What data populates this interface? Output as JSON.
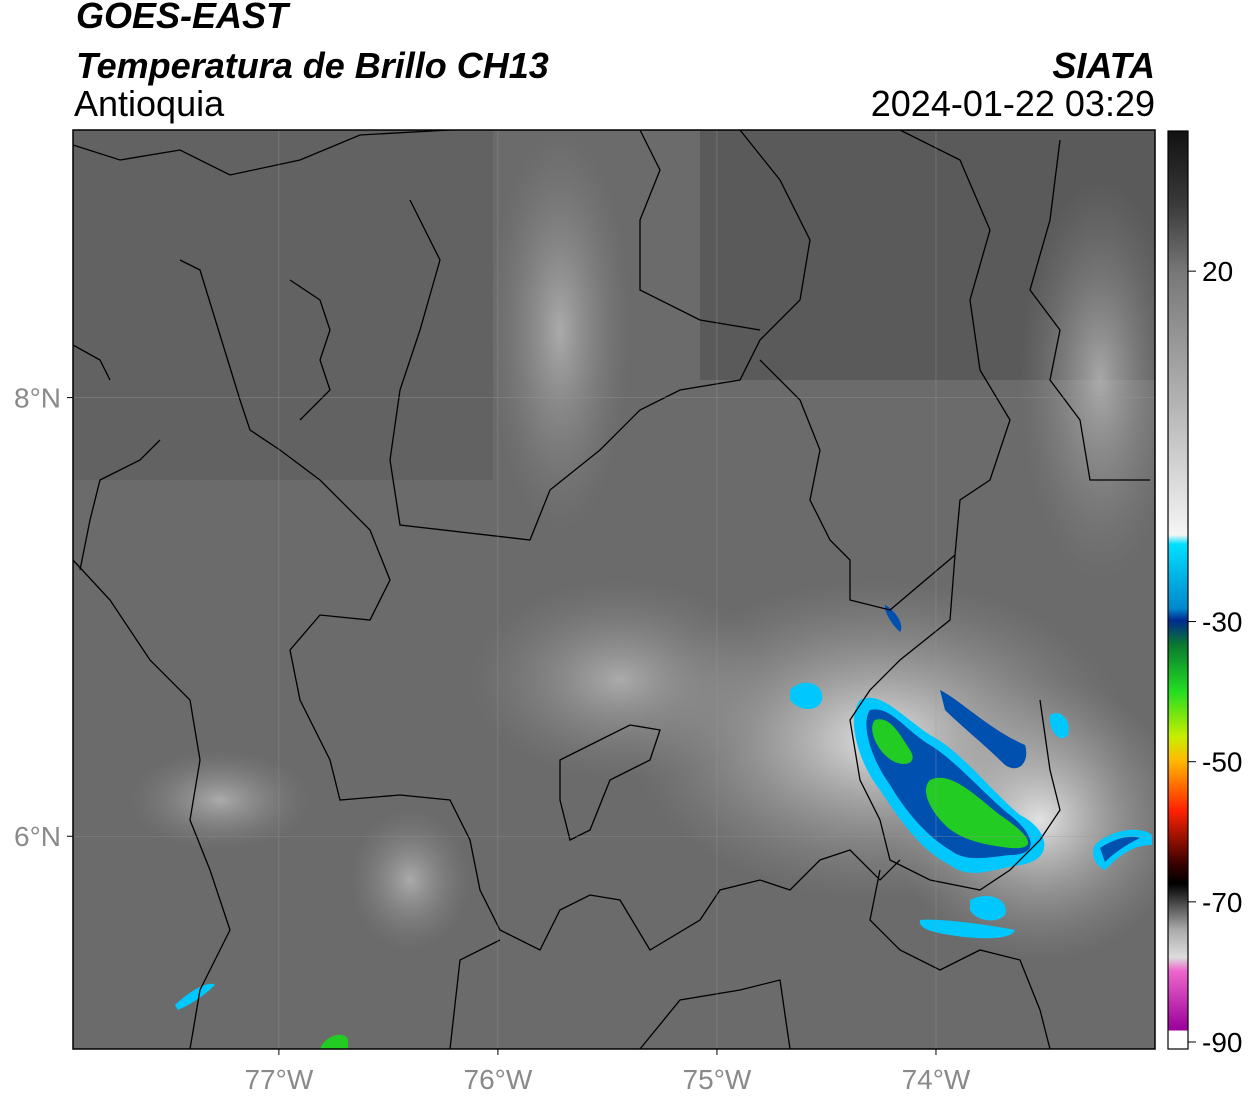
{
  "header": {
    "satellite": "GOES-EAST",
    "product": "Temperatura de Brillo CH13",
    "region": "Antioquia",
    "source": "SIATA",
    "datetime": "2024-01-22 03:29"
  },
  "map": {
    "lon_lim": [
      -77.94,
      -73.0
    ],
    "lat_lim": [
      5.03,
      9.22
    ],
    "lon_ticks": [
      {
        "value": -77,
        "label": "77°W"
      },
      {
        "value": -76,
        "label": "76°W"
      },
      {
        "value": -75,
        "label": "75°W"
      },
      {
        "value": -74,
        "label": "74°W"
      }
    ],
    "lat_ticks": [
      {
        "value": 8,
        "label": "8°N"
      },
      {
        "value": 6,
        "label": "6°N"
      }
    ],
    "grid": true
  },
  "colorbar": {
    "lim": [
      -91,
      40
    ],
    "ticks": [
      20,
      -30,
      -50,
      -70,
      -90
    ]
  }
}
